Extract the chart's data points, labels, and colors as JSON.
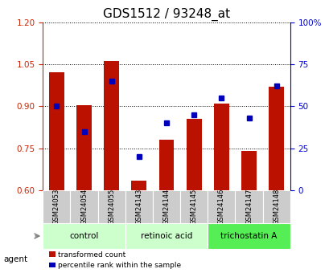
{
  "title": "GDS1512 / 93248_at",
  "samples": [
    "GSM24053",
    "GSM24054",
    "GSM24055",
    "GSM24143",
    "GSM24144",
    "GSM24145",
    "GSM24146",
    "GSM24147",
    "GSM24148"
  ],
  "transformed_count": [
    1.02,
    0.905,
    1.06,
    0.635,
    0.78,
    0.855,
    0.91,
    0.74,
    0.97
  ],
  "percentile_rank": [
    50,
    35,
    65,
    20,
    40,
    45,
    55,
    43,
    62
  ],
  "ylim_left": [
    0.6,
    1.2
  ],
  "ylim_right": [
    0,
    100
  ],
  "yticks_left": [
    0.6,
    0.75,
    0.9,
    1.05,
    1.2
  ],
  "yticks_right": [
    0,
    25,
    50,
    75,
    100
  ],
  "ytick_labels_right": [
    "0",
    "25",
    "50",
    "75",
    "100%"
  ],
  "bar_color": "#bb1100",
  "dot_color": "#0000bb",
  "bar_bottom": 0.6,
  "group_info": [
    {
      "label": "control",
      "indices": [
        0,
        1,
        2
      ],
      "color": "#ccffcc"
    },
    {
      "label": "retinoic acid",
      "indices": [
        3,
        4,
        5
      ],
      "color": "#ccffcc"
    },
    {
      "label": "trichostatin A",
      "indices": [
        6,
        7,
        8
      ],
      "color": "#55ee55"
    }
  ],
  "legend_red": "transformed count",
  "legend_blue": "percentile rank within the sample",
  "agent_label": "agent",
  "title_fontsize": 11,
  "axis_color_left": "#cc2200",
  "axis_color_right": "#0000cc",
  "tick_gray": "#cccccc",
  "bar_width": 0.55
}
